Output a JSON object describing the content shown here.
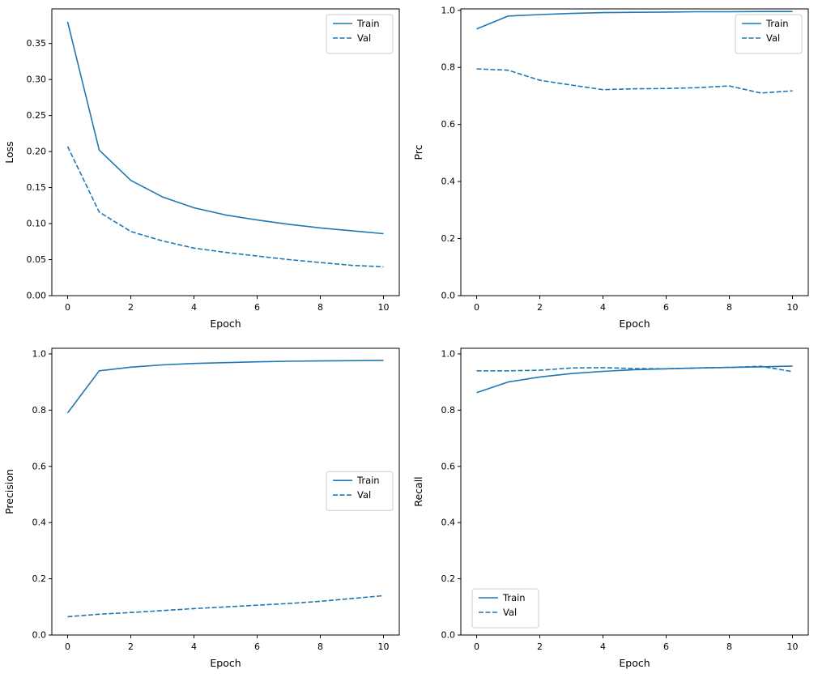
{
  "figure": {
    "background": "#ffffff"
  },
  "style": {
    "line_color": "#1f77b4",
    "axis_color": "#000000",
    "tick_fontsize": 11,
    "label_fontsize": 12.5,
    "legend_fontsize": 11.5,
    "legend_border": "#cccccc",
    "legend_background": "#ffffff"
  },
  "chart_data": [
    {
      "type": "line",
      "title": "",
      "xlabel": "Epoch",
      "ylabel": "Loss",
      "grid": false,
      "xlim": [
        -0.5,
        10.5
      ],
      "ylim": [
        0,
        0.398
      ],
      "xticks": [
        0,
        2,
        4,
        6,
        8,
        10
      ],
      "yticks": [
        0.0,
        0.05,
        0.1,
        0.15,
        0.2,
        0.25,
        0.3,
        0.35
      ],
      "ytick_decimals": 2,
      "x": [
        0,
        1,
        2,
        3,
        4,
        5,
        6,
        7,
        8,
        9,
        10
      ],
      "series": [
        {
          "name": "Train",
          "style": "solid",
          "values": [
            0.38,
            0.202,
            0.16,
            0.137,
            0.122,
            0.112,
            0.105,
            0.099,
            0.094,
            0.09,
            0.086
          ]
        },
        {
          "name": "Val",
          "style": "dashed",
          "values": [
            0.207,
            0.116,
            0.089,
            0.076,
            0.066,
            0.06,
            0.055,
            0.05,
            0.046,
            0.042,
            0.04
          ]
        }
      ],
      "legend": {
        "position": "top-right",
        "entries": [
          "Train",
          "Val"
        ]
      }
    },
    {
      "type": "line",
      "title": "",
      "xlabel": "Epoch",
      "ylabel": "Prc",
      "grid": false,
      "xlim": [
        -0.5,
        10.5
      ],
      "ylim": [
        0,
        1.005
      ],
      "xticks": [
        0,
        2,
        4,
        6,
        8,
        10
      ],
      "yticks": [
        0.0,
        0.2,
        0.4,
        0.6,
        0.8,
        1.0
      ],
      "ytick_decimals": 1,
      "x": [
        0,
        1,
        2,
        3,
        4,
        5,
        6,
        7,
        8,
        9,
        10
      ],
      "series": [
        {
          "name": "Train",
          "style": "solid",
          "values": [
            0.935,
            0.98,
            0.985,
            0.989,
            0.992,
            0.993,
            0.994,
            0.995,
            0.995,
            0.996,
            0.996
          ]
        },
        {
          "name": "Val",
          "style": "dashed",
          "values": [
            0.795,
            0.79,
            0.755,
            0.738,
            0.722,
            0.725,
            0.726,
            0.729,
            0.735,
            0.71,
            0.718
          ]
        }
      ],
      "legend": {
        "position": "top-right",
        "entries": [
          "Train",
          "Val"
        ]
      }
    },
    {
      "type": "line",
      "title": "",
      "xlabel": "Epoch",
      "ylabel": "Precision",
      "grid": false,
      "xlim": [
        -0.5,
        10.5
      ],
      "ylim": [
        0,
        1.02
      ],
      "xticks": [
        0,
        2,
        4,
        6,
        8,
        10
      ],
      "yticks": [
        0.0,
        0.2,
        0.4,
        0.6,
        0.8,
        1.0
      ],
      "ytick_decimals": 1,
      "x": [
        0,
        1,
        2,
        3,
        4,
        5,
        6,
        7,
        8,
        9,
        10
      ],
      "series": [
        {
          "name": "Train",
          "style": "solid",
          "values": [
            0.79,
            0.94,
            0.953,
            0.961,
            0.966,
            0.969,
            0.972,
            0.974,
            0.975,
            0.976,
            0.977
          ]
        },
        {
          "name": "Val",
          "style": "dashed",
          "values": [
            0.065,
            0.074,
            0.08,
            0.087,
            0.094,
            0.1,
            0.106,
            0.112,
            0.12,
            0.13,
            0.14
          ]
        }
      ],
      "legend": {
        "position": "center-right",
        "entries": [
          "Train",
          "Val"
        ]
      }
    },
    {
      "type": "line",
      "title": "",
      "xlabel": "Epoch",
      "ylabel": "Recall",
      "grid": false,
      "xlim": [
        -0.5,
        10.5
      ],
      "ylim": [
        0,
        1.02
      ],
      "xticks": [
        0,
        2,
        4,
        6,
        8,
        10
      ],
      "yticks": [
        0.0,
        0.2,
        0.4,
        0.6,
        0.8,
        1.0
      ],
      "ytick_decimals": 1,
      "x": [
        0,
        1,
        2,
        3,
        4,
        5,
        6,
        7,
        8,
        9,
        10
      ],
      "series": [
        {
          "name": "Train",
          "style": "solid",
          "values": [
            0.862,
            0.9,
            0.918,
            0.93,
            0.938,
            0.944,
            0.947,
            0.95,
            0.952,
            0.954,
            0.957
          ]
        },
        {
          "name": "Val",
          "style": "dashed",
          "values": [
            0.94,
            0.94,
            0.942,
            0.95,
            0.951,
            0.948,
            0.947,
            0.95,
            0.952,
            0.956,
            0.937
          ]
        }
      ],
      "legend": {
        "position": "lower-left",
        "entries": [
          "Train",
          "Val"
        ]
      }
    }
  ]
}
